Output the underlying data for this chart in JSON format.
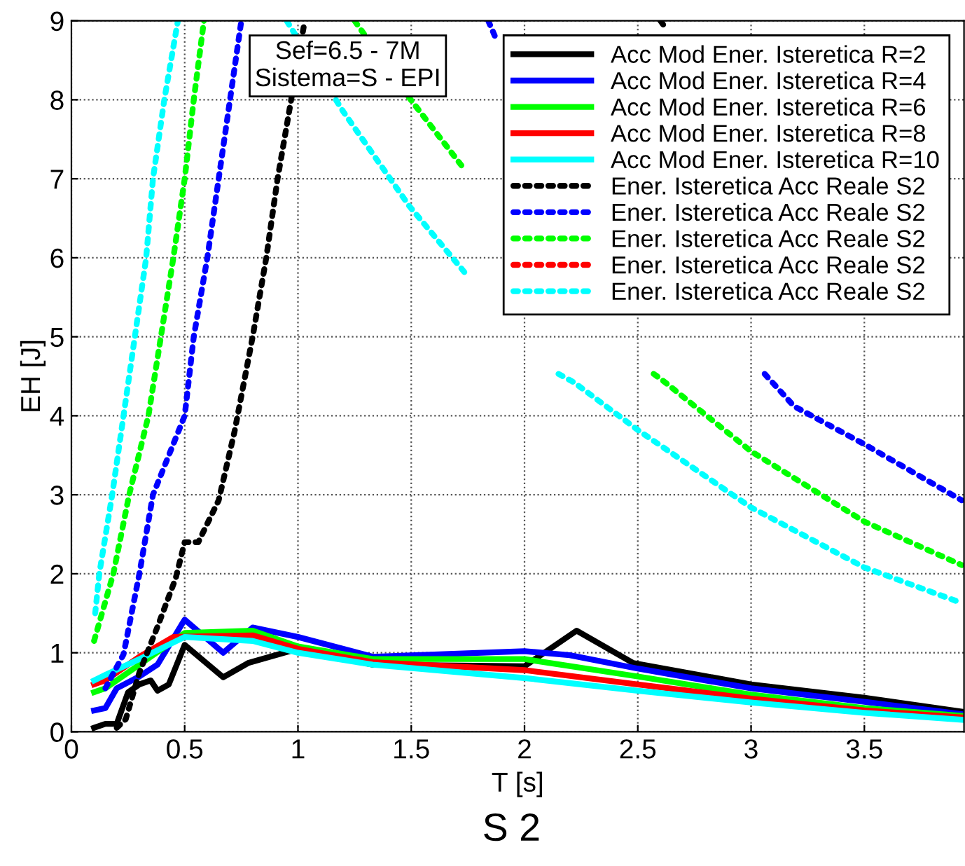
{
  "chart_data": {
    "type": "line",
    "title": "S 2",
    "xlabel": "T [s]",
    "ylabel": "EH [J]",
    "annotations": [
      "Sef=6.5 - 7M\nSistema=S - EPI"
    ],
    "xlim": [
      0,
      3.94
    ],
    "ylim": [
      0,
      9
    ],
    "xticks": [
      0,
      0.5,
      1,
      1.5,
      2,
      2.5,
      3,
      3.5
    ],
    "yticks": [
      0,
      1,
      2,
      3,
      4,
      5,
      6,
      7,
      8,
      9
    ],
    "grid": true,
    "legend": "top right",
    "marker": "none",
    "series": [
      {
        "name": "Acc Mod Ener. Isteretica R=2",
        "color": "#000000",
        "line_style": "solid",
        "x": [
          0.1,
          0.15,
          0.2,
          0.25,
          0.3,
          0.35,
          0.38,
          0.43,
          0.5,
          0.67,
          0.78,
          1.0,
          1.33,
          2.0,
          2.23,
          2.48,
          3.0,
          3.5,
          3.94
        ],
        "values": [
          0.05,
          0.1,
          0.1,
          0.5,
          0.6,
          0.65,
          0.52,
          0.6,
          1.1,
          0.69,
          0.87,
          1.05,
          0.85,
          0.83,
          1.28,
          0.87,
          0.6,
          0.43,
          0.25
        ]
      },
      {
        "name": "Acc Mod Ener. Isteretica R=4",
        "color": "#0000ff",
        "line_style": "solid",
        "x": [
          0.1,
          0.15,
          0.2,
          0.3,
          0.38,
          0.5,
          0.67,
          0.8,
          1.0,
          1.33,
          2.0,
          2.2,
          2.5,
          3.0,
          3.5,
          3.94
        ],
        "values": [
          0.27,
          0.3,
          0.55,
          0.7,
          0.85,
          1.42,
          1.0,
          1.32,
          1.2,
          0.95,
          1.02,
          0.97,
          0.8,
          0.55,
          0.38,
          0.22
        ]
      },
      {
        "name": "Acc Mod Ener. Isteretica R=6",
        "color": "#00ff00",
        "line_style": "solid",
        "x": [
          0.1,
          0.15,
          0.3,
          0.5,
          0.8,
          1.0,
          1.33,
          2.0,
          2.5,
          3.0,
          3.5,
          3.94
        ],
        "values": [
          0.5,
          0.55,
          0.85,
          1.25,
          1.28,
          1.08,
          0.92,
          0.92,
          0.7,
          0.47,
          0.3,
          0.2
        ]
      },
      {
        "name": "Acc Mod Ener. Isteretica R=8",
        "color": "#ff0000",
        "line_style": "solid",
        "x": [
          0.1,
          0.15,
          0.3,
          0.45,
          0.8,
          1.0,
          1.33,
          2.0,
          2.5,
          3.0,
          3.5,
          3.94
        ],
        "values": [
          0.6,
          0.65,
          0.95,
          1.2,
          1.22,
          1.05,
          0.88,
          0.78,
          0.6,
          0.42,
          0.27,
          0.18
        ]
      },
      {
        "name": "Acc Mod Ener. Isteretica R=10",
        "color": "#00ffff",
        "line_style": "solid",
        "x": [
          0.1,
          0.15,
          0.3,
          0.5,
          0.8,
          1.0,
          1.33,
          2.0,
          2.5,
          3.0,
          3.5,
          3.94
        ],
        "values": [
          0.65,
          0.72,
          0.92,
          1.2,
          1.15,
          1.0,
          0.85,
          0.68,
          0.52,
          0.37,
          0.24,
          0.15
        ]
      },
      {
        "name": "Ener. Isteretica Acc Reale S2",
        "color": "#000000",
        "line_style": "dotted",
        "x": [
          0.2,
          0.24,
          0.3,
          0.38,
          0.46,
          0.5,
          0.56,
          0.65,
          0.72,
          0.8,
          0.86,
          0.91,
          0.97,
          1.03,
          1.8,
          2.6,
          2.63
        ],
        "values": [
          0.05,
          0.16,
          0.75,
          1.33,
          1.94,
          2.4,
          2.4,
          2.93,
          3.8,
          5,
          6,
          7,
          8,
          9,
          null,
          9,
          8.88
        ]
      },
      {
        "name": "Ener. Isteretica Acc Reale S2",
        "color": "#0000ff",
        "line_style": "dotted",
        "x": [
          0.15,
          0.23,
          0.3,
          0.36,
          0.5,
          0.54,
          0.6,
          0.65,
          0.7,
          0.75,
          1.3,
          1.84,
          1.87,
          2.5,
          3.06,
          3.19,
          3.5,
          3.93
        ],
        "values": [
          0.55,
          0.98,
          2,
          3,
          4,
          5,
          6,
          7,
          8,
          9,
          null,
          9,
          8.8,
          null,
          4.53,
          4.12,
          3.64,
          2.93
        ]
      },
      {
        "name": "Ener. Isteretica Acc Reale S2",
        "color": "#00ff00",
        "line_style": "dotted",
        "x": [
          0.1,
          0.185,
          0.255,
          0.34,
          0.395,
          0.45,
          0.5,
          0.54,
          0.585,
          0.9,
          1.25,
          1.49,
          1.74,
          2.2,
          2.57,
          2.6,
          3.0,
          3.5,
          3.93
        ],
        "values": [
          1.15,
          2,
          3,
          4,
          5,
          6,
          7,
          8,
          9,
          null,
          9,
          8.03,
          7.1,
          null,
          4.53,
          4.47,
          3.55,
          2.66,
          2.11
        ]
      },
      {
        "name": "Ener. Isteretica Acc Reale S2",
        "color": "#ff0000",
        "line_style": "dotted"
      },
      {
        "name": "Ener. Isteretica Acc Reale S2",
        "color": "#00ffff",
        "line_style": "dotted",
        "x": [
          0.105,
          0.123,
          0.18,
          0.23,
          0.28,
          0.33,
          0.36,
          0.41,
          0.47,
          0.7,
          0.95,
          1.2,
          1.49,
          1.74,
          2.0,
          2.15,
          2.22,
          2.5,
          3.0,
          3.5,
          3.93
        ],
        "values": [
          1.5,
          2,
          3,
          4,
          5,
          6,
          7,
          8,
          9,
          null,
          9,
          7.85,
          6.66,
          5.8,
          null,
          4.53,
          4.42,
          3.82,
          2.84,
          2.08,
          1.63
        ]
      }
    ]
  }
}
